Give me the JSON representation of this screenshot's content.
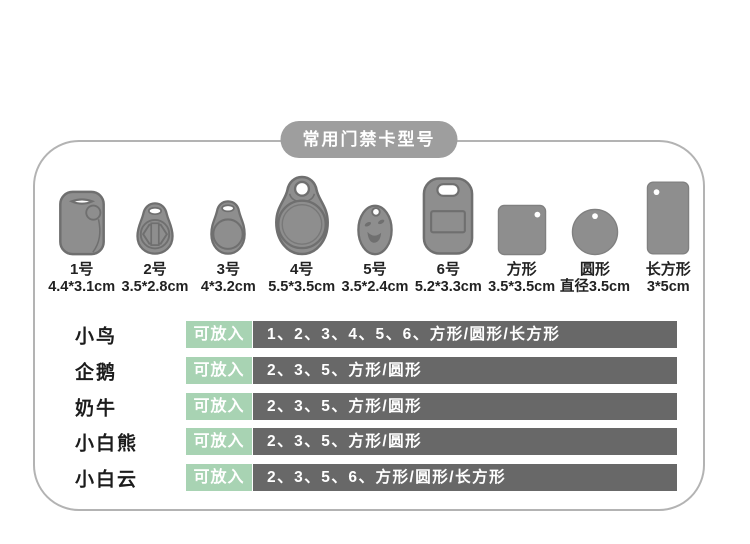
{
  "header": {
    "title": "常用门禁卡型号"
  },
  "cards": [
    {
      "name": "1号",
      "size": "4.4*3.1cm",
      "shape": "fob-rounded-square"
    },
    {
      "name": "2号",
      "size": "3.5*2.8cm",
      "shape": "fob-teardrop-hex"
    },
    {
      "name": "3号",
      "size": "4*3.2cm",
      "shape": "fob-teardrop"
    },
    {
      "name": "4号",
      "size": "5.5*3.5cm",
      "shape": "fob-teardrop-large"
    },
    {
      "name": "5号",
      "size": "3.5*2.4cm",
      "shape": "fob-egg-face"
    },
    {
      "name": "6号",
      "size": "5.2*3.3cm",
      "shape": "fob-rect-window"
    },
    {
      "name": "方形",
      "size": "3.5*3.5cm",
      "shape": "square-tag"
    },
    {
      "name": "圆形",
      "size": "直径3.5cm",
      "shape": "circle-tag"
    },
    {
      "name": "长方形",
      "size": "3*5cm",
      "shape": "rect-tag"
    }
  ],
  "compatibility": {
    "badge_label": "可放入",
    "rows": [
      {
        "product": "小鸟",
        "fits": "1、2、3、4、5、6、方形/圆形/长方形"
      },
      {
        "product": "企鹅",
        "fits": "2、3、5、方形/圆形"
      },
      {
        "product": "奶牛",
        "fits": "2、3、5、方形/圆形"
      },
      {
        "product": "小白熊",
        "fits": "2、3、5、方形/圆形"
      },
      {
        "product": "小白云",
        "fits": "2、3、5、6、方形/圆形/长方形"
      }
    ]
  },
  "colors": {
    "badge_green": "#a8d3b3",
    "bar_gray": "#686868",
    "pill_gray": "#9e9e9e",
    "panel_border": "#b3b3b3",
    "shape_fill": "#8e8e8e",
    "shape_stroke": "#6f6f6f"
  }
}
